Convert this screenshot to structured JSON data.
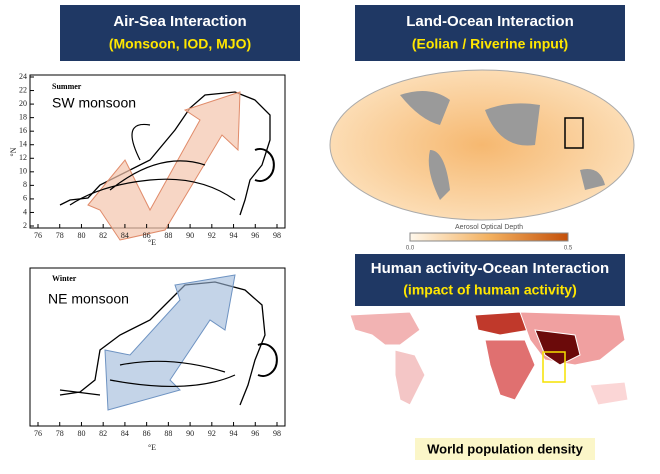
{
  "panels": {
    "air_sea": {
      "title": "Air-Sea Interaction",
      "subtitle": "(Monsoon, IOD, MJO)"
    },
    "land_ocean": {
      "title": "Land-Ocean Interaction",
      "subtitle": "(Eolian / Riverine input)",
      "colorbar_label": "Aerosol Optical Depth",
      "colorbar_min": "0.0",
      "colorbar_max": "0.5"
    },
    "human": {
      "title": "Human activity-Ocean Interaction",
      "subtitle": "(impact of human activity)",
      "caption": "World population density"
    }
  },
  "maps": [
    {
      "season": "Summer",
      "label": "SW monsoon",
      "x_unit": "°E",
      "y_unit": "°N",
      "yticks": [
        24,
        22,
        20,
        18,
        16,
        14,
        12,
        10,
        8,
        6,
        4,
        2
      ],
      "xticks": [
        76,
        78,
        80,
        82,
        84,
        86,
        88,
        90,
        92,
        94,
        96,
        98
      ]
    },
    {
      "season": "Winter",
      "label": "NE monsoon",
      "x_unit": "°E",
      "xticks": [
        76,
        78,
        80,
        82,
        84,
        86,
        88,
        90,
        92,
        94,
        96,
        98
      ]
    }
  ]
}
